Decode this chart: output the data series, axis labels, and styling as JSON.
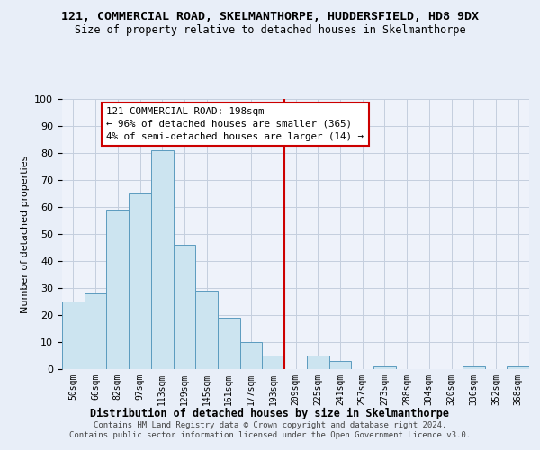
{
  "title": "121, COMMERCIAL ROAD, SKELMANTHORPE, HUDDERSFIELD, HD8 9DX",
  "subtitle": "Size of property relative to detached houses in Skelmanthorpe",
  "xlabel": "Distribution of detached houses by size in Skelmanthorpe",
  "ylabel": "Number of detached properties",
  "bar_labels": [
    "50sqm",
    "66sqm",
    "82sqm",
    "97sqm",
    "113sqm",
    "129sqm",
    "145sqm",
    "161sqm",
    "177sqm",
    "193sqm",
    "209sqm",
    "225sqm",
    "241sqm",
    "257sqm",
    "273sqm",
    "288sqm",
    "304sqm",
    "320sqm",
    "336sqm",
    "352sqm",
    "368sqm"
  ],
  "bar_values": [
    25,
    28,
    59,
    65,
    81,
    46,
    29,
    19,
    10,
    5,
    0,
    5,
    3,
    0,
    1,
    0,
    0,
    0,
    1,
    0,
    1
  ],
  "bar_color": "#cce4f0",
  "bar_edge_color": "#5b9bbf",
  "vline_x": 9.5,
  "vline_color": "#cc0000",
  "annotation_title": "121 COMMERCIAL ROAD: 198sqm",
  "annotation_line1": "← 96% of detached houses are smaller (365)",
  "annotation_line2": "4% of semi-detached houses are larger (14) →",
  "ylim": [
    0,
    100
  ],
  "yticks": [
    0,
    10,
    20,
    30,
    40,
    50,
    60,
    70,
    80,
    90,
    100
  ],
  "footer1": "Contains HM Land Registry data © Crown copyright and database right 2024.",
  "footer2": "Contains public sector information licensed under the Open Government Licence v3.0.",
  "bg_color": "#e8eef8",
  "plot_bg_color": "#eef2fa",
  "grid_color": "#c4cede"
}
